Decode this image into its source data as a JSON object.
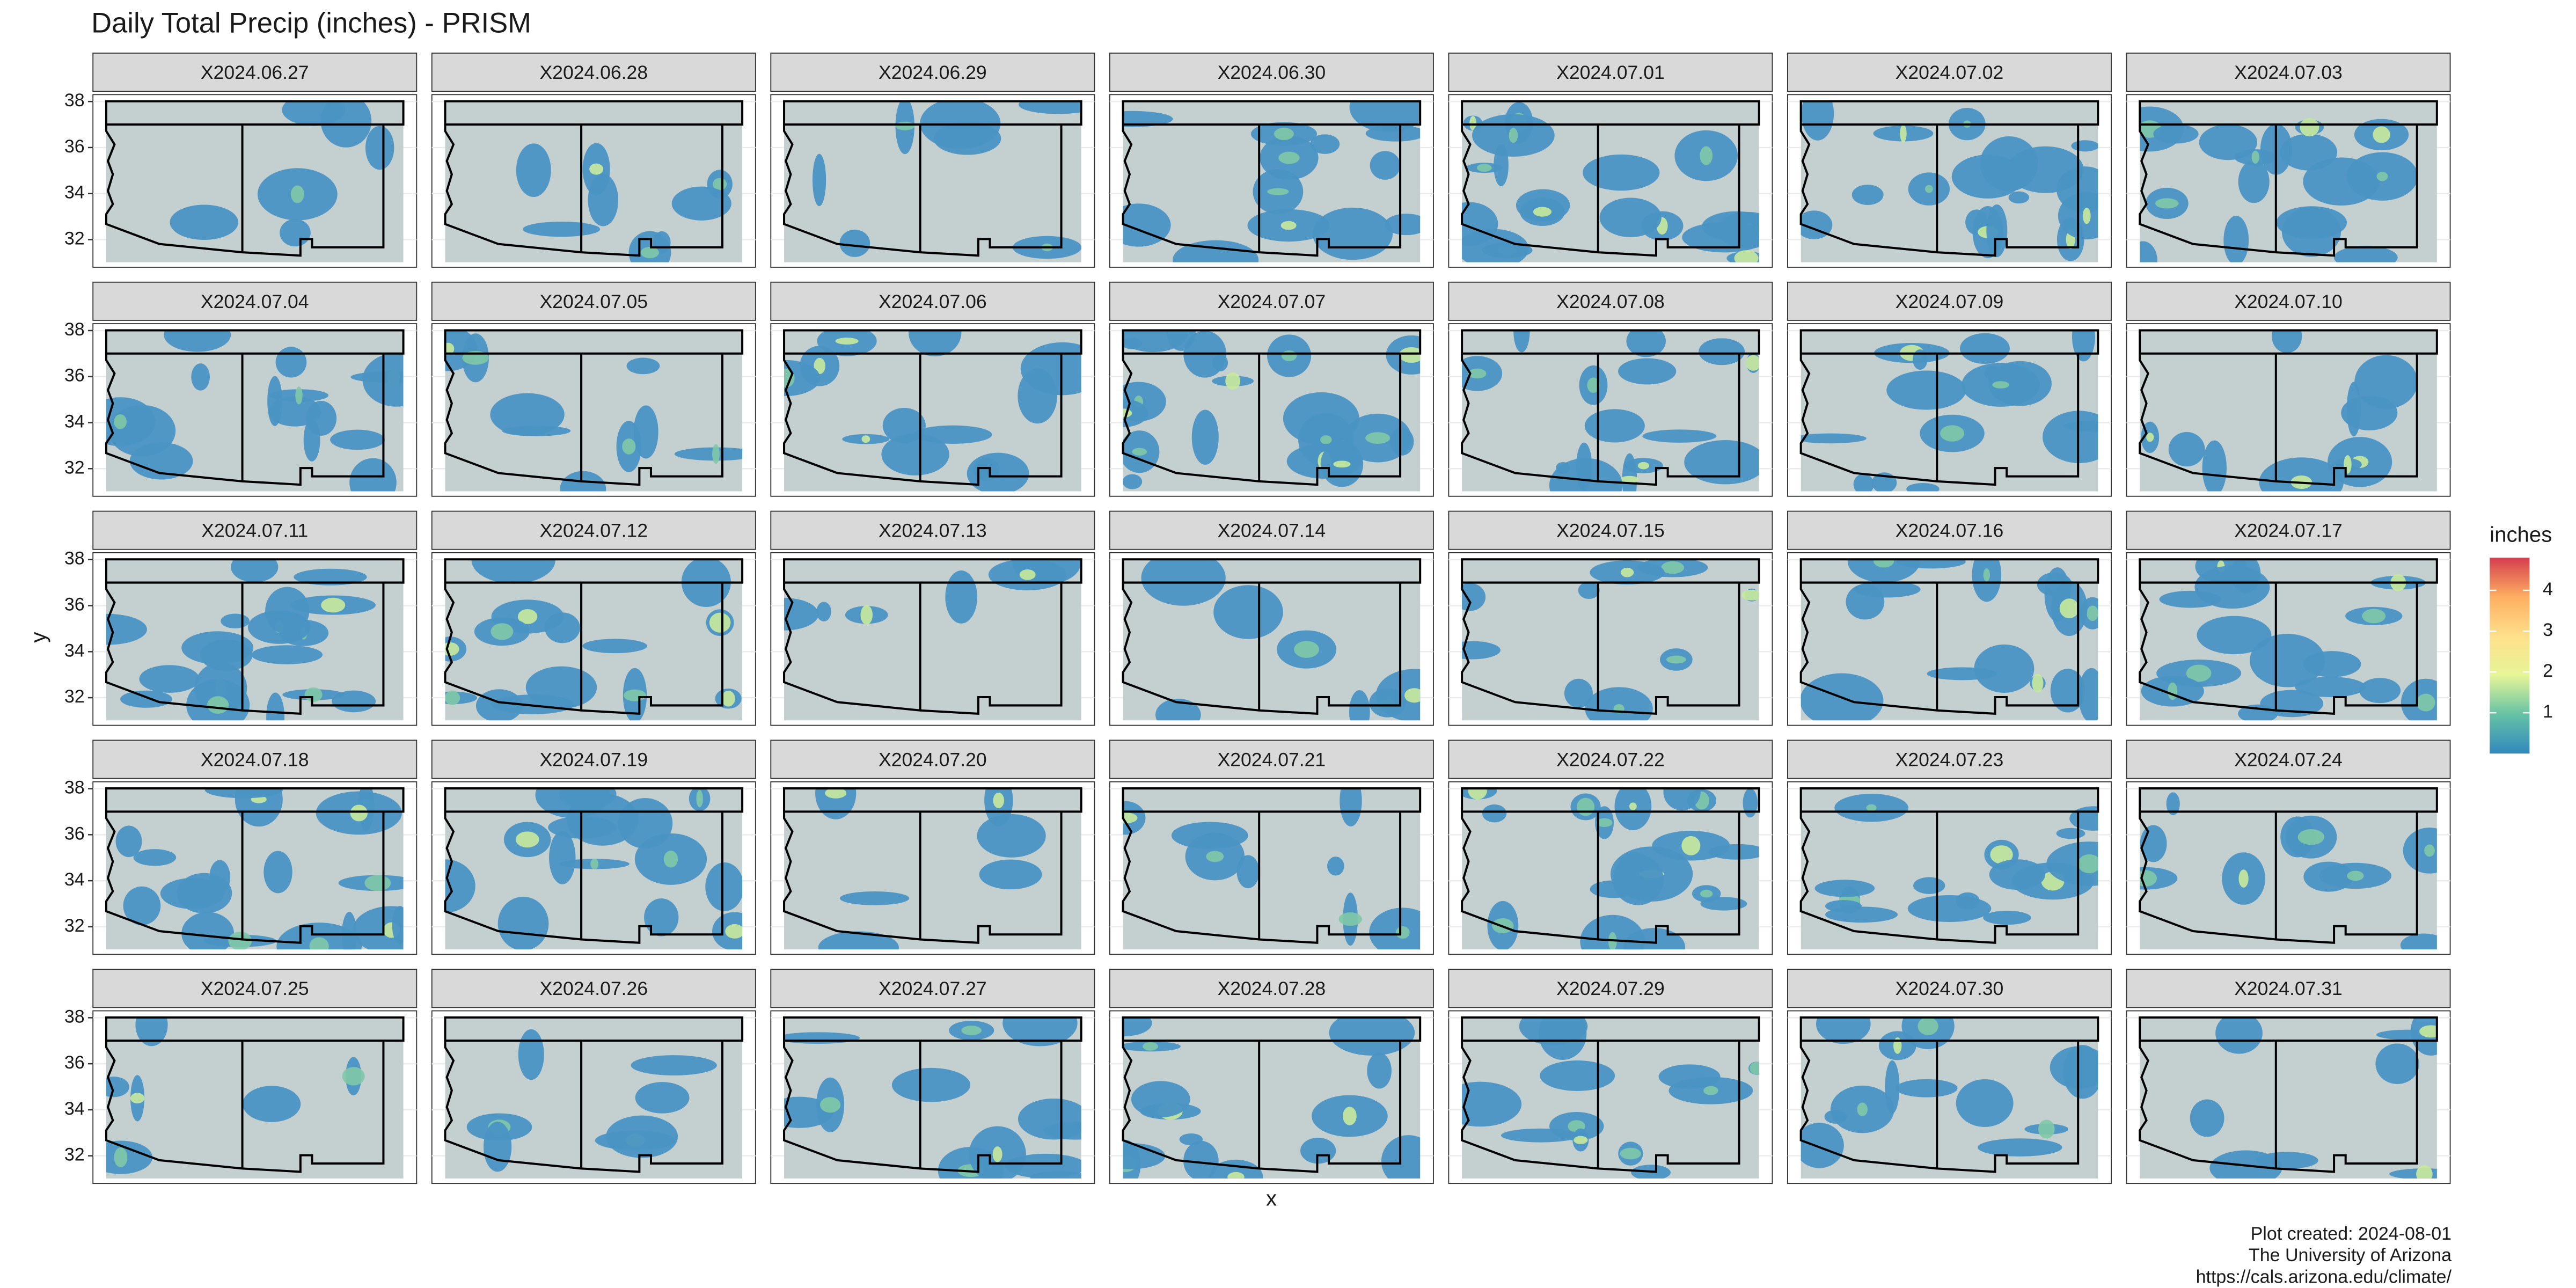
{
  "chart_data": {
    "type": "map",
    "title": "Daily Total Precip (inches) - PRISM",
    "panels": [
      "X2024.06.27",
      "X2024.06.28",
      "X2024.06.29",
      "X2024.06.30",
      "X2024.07.01",
      "X2024.07.02",
      "X2024.07.03",
      "X2024.07.04",
      "X2024.07.05",
      "X2024.07.06",
      "X2024.07.07",
      "X2024.07.08",
      "X2024.07.09",
      "X2024.07.10",
      "X2024.07.11",
      "X2024.07.12",
      "X2024.07.13",
      "X2024.07.14",
      "X2024.07.15",
      "X2024.07.16",
      "X2024.07.17",
      "X2024.07.18",
      "X2024.07.19",
      "X2024.07.20",
      "X2024.07.21",
      "X2024.07.22",
      "X2024.07.23",
      "X2024.07.24",
      "X2024.07.25",
      "X2024.07.26",
      "X2024.07.27",
      "X2024.07.28",
      "X2024.07.29",
      "X2024.07.30",
      "X2024.07.31"
    ],
    "xlabel": "x",
    "ylabel": "y",
    "ylim": [
      30.8,
      38.3
    ],
    "yticks": [
      32,
      34,
      36,
      38
    ],
    "legend_title": "inches",
    "colorlim": [
      0,
      4.8
    ],
    "colorticks": [
      1,
      2,
      3,
      4
    ],
    "colorscale": [
      "#3288bd",
      "#66c2a5",
      "#e6f598",
      "#fee08b",
      "#fdae61",
      "#d53e4f"
    ],
    "caption": [
      "Plot created: 2024-08-01",
      "The University of Arizona",
      "https://cals.arizona.edu/climate/"
    ]
  }
}
